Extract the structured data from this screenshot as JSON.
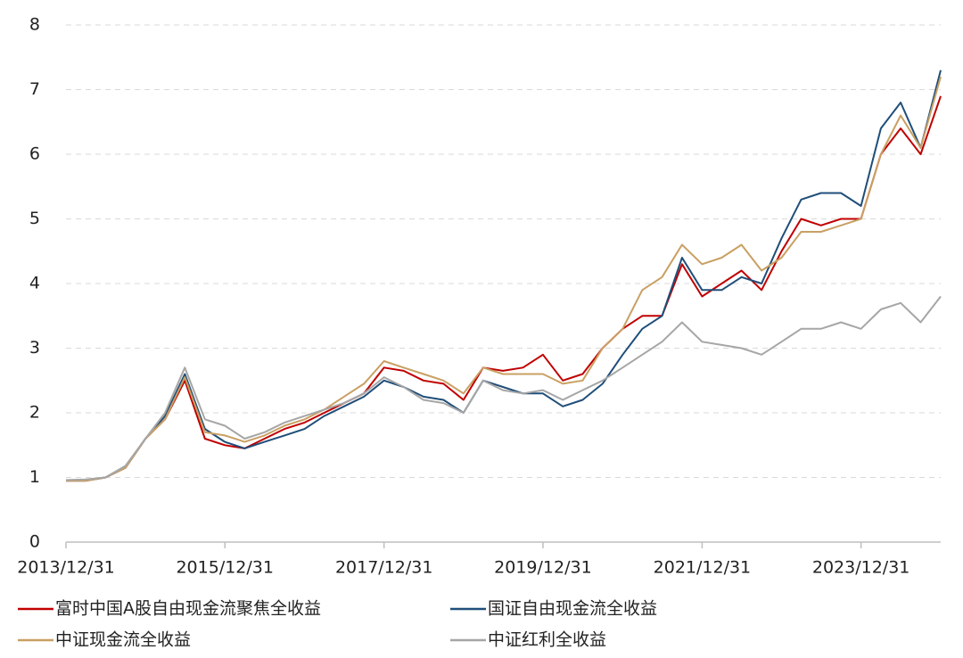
{
  "chart_data": {
    "type": "line",
    "x": [
      "2013/12/31",
      "2014/03/31",
      "2014/06/30",
      "2014/09/30",
      "2014/12/31",
      "2015/03/31",
      "2015/06/30",
      "2015/09/30",
      "2015/12/31",
      "2016/03/31",
      "2016/06/30",
      "2016/09/30",
      "2016/12/31",
      "2017/03/31",
      "2017/06/30",
      "2017/09/30",
      "2017/12/31",
      "2018/03/31",
      "2018/06/30",
      "2018/09/30",
      "2018/12/31",
      "2019/03/31",
      "2019/06/30",
      "2019/09/30",
      "2019/12/31",
      "2020/03/31",
      "2020/06/30",
      "2020/09/30",
      "2020/12/31",
      "2021/03/31",
      "2021/06/30",
      "2021/09/30",
      "2021/12/31",
      "2022/03/31",
      "2022/06/30",
      "2022/09/30",
      "2022/12/31",
      "2023/03/31",
      "2023/06/30",
      "2023/09/30",
      "2023/12/31",
      "2024/03/31",
      "2024/06/30",
      "2024/09/30",
      "2024/12/31"
    ],
    "series": [
      {
        "name": "富时中国A股自由现金流聚焦全收益",
        "color": "#c00000",
        "values": [
          0.95,
          0.95,
          1.0,
          1.15,
          1.6,
          1.9,
          2.5,
          1.6,
          1.5,
          1.45,
          1.6,
          1.75,
          1.85,
          2.0,
          2.15,
          2.3,
          2.7,
          2.65,
          2.5,
          2.45,
          2.2,
          2.7,
          2.65,
          2.7,
          2.9,
          2.5,
          2.6,
          3.0,
          3.3,
          3.5,
          3.5,
          4.3,
          3.8,
          4.0,
          4.2,
          3.9,
          4.5,
          5.0,
          4.9,
          5.0,
          5.0,
          6.0,
          6.4,
          6.0,
          6.9
        ]
      },
      {
        "name": "国证自由现金流全收益",
        "color": "#1f4e79",
        "values": [
          0.95,
          0.95,
          1.0,
          1.15,
          1.6,
          1.95,
          2.6,
          1.75,
          1.55,
          1.45,
          1.55,
          1.65,
          1.75,
          1.95,
          2.1,
          2.25,
          2.5,
          2.4,
          2.25,
          2.2,
          2.0,
          2.5,
          2.4,
          2.3,
          2.3,
          2.1,
          2.2,
          2.45,
          2.9,
          3.3,
          3.5,
          4.4,
          3.9,
          3.9,
          4.1,
          4.0,
          4.7,
          5.3,
          5.4,
          5.4,
          5.2,
          6.4,
          6.8,
          6.1,
          7.3
        ]
      },
      {
        "name": "中证现金流全收益",
        "color": "#c9a063",
        "values": [
          0.95,
          0.95,
          1.0,
          1.15,
          1.6,
          1.9,
          2.55,
          1.7,
          1.65,
          1.55,
          1.65,
          1.8,
          1.9,
          2.05,
          2.25,
          2.45,
          2.8,
          2.7,
          2.6,
          2.5,
          2.3,
          2.7,
          2.6,
          2.6,
          2.6,
          2.45,
          2.5,
          3.0,
          3.3,
          3.9,
          4.1,
          4.6,
          4.3,
          4.4,
          4.6,
          4.2,
          4.4,
          4.8,
          4.8,
          4.9,
          5.0,
          6.0,
          6.6,
          6.1,
          7.2
        ]
      },
      {
        "name": "中证红利全收益",
        "color": "#a6a6a6",
        "values": [
          0.96,
          0.97,
          1.0,
          1.18,
          1.6,
          2.0,
          2.7,
          1.9,
          1.8,
          1.6,
          1.7,
          1.85,
          1.95,
          2.05,
          2.15,
          2.3,
          2.55,
          2.4,
          2.2,
          2.15,
          2.0,
          2.5,
          2.35,
          2.3,
          2.35,
          2.2,
          2.35,
          2.5,
          2.7,
          2.9,
          3.1,
          3.4,
          3.1,
          3.05,
          3.0,
          2.9,
          3.1,
          3.3,
          3.3,
          3.4,
          3.3,
          3.6,
          3.7,
          3.4,
          3.8
        ]
      }
    ],
    "xlim": [
      "2013/12/31",
      "2024/12/31"
    ],
    "xticks": [
      "2013/12/31",
      "2015/12/31",
      "2017/12/31",
      "2019/12/31",
      "2021/12/31",
      "2023/12/31"
    ],
    "ylim": [
      0,
      8
    ],
    "yticks": [
      0,
      1,
      2,
      3,
      4,
      5,
      6,
      7,
      8
    ],
    "grid": true
  }
}
